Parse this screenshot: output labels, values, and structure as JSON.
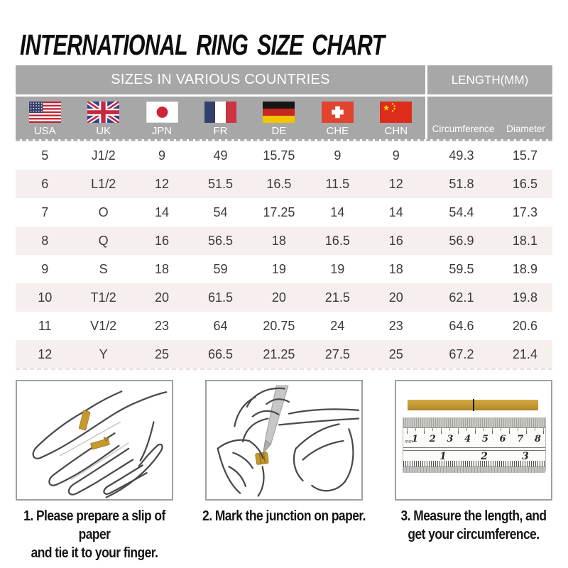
{
  "title": "INTERNATIONAL RING SIZE CHART",
  "chart_data": {
    "type": "table",
    "group_headers": {
      "sizes": "SIZES IN VARIOUS COUNTRIES",
      "length": "LENGTH(MM)"
    },
    "columns": [
      {
        "code": "USA",
        "flag_icon": "usa-flag-icon"
      },
      {
        "code": "UK",
        "flag_icon": "uk-flag-icon"
      },
      {
        "code": "JPN",
        "flag_icon": "japan-flag-icon"
      },
      {
        "code": "FR",
        "flag_icon": "france-flag-icon"
      },
      {
        "code": "DE",
        "flag_icon": "germany-flag-icon"
      },
      {
        "code": "CHE",
        "flag_icon": "switzerland-flag-icon"
      },
      {
        "code": "CHN",
        "flag_icon": "china-flag-icon"
      }
    ],
    "length_columns": [
      "Circumference",
      "Diameter"
    ],
    "rows": [
      [
        "5",
        "J1/2",
        "9",
        "49",
        "15.75",
        "9",
        "9",
        "49.3",
        "15.7"
      ],
      [
        "6",
        "L1/2",
        "12",
        "51.5",
        "16.5",
        "11.5",
        "12",
        "51.8",
        "16.5"
      ],
      [
        "7",
        "O",
        "14",
        "54",
        "17.25",
        "14",
        "14",
        "54.4",
        "17.3"
      ],
      [
        "8",
        "Q",
        "16",
        "56.5",
        "18",
        "16.5",
        "16",
        "56.9",
        "18.1"
      ],
      [
        "9",
        "S",
        "18",
        "59",
        "19",
        "19",
        "18",
        "59.5",
        "18.9"
      ],
      [
        "10",
        "T1/2",
        "20",
        "61.5",
        "20",
        "21.5",
        "20",
        "62.1",
        "19.8"
      ],
      [
        "11",
        "V1/2",
        "23",
        "64",
        "20.75",
        "24",
        "23",
        "64.6",
        "20.6"
      ],
      [
        "12",
        "Y",
        "25",
        "66.5",
        "21.25",
        "27.5",
        "25",
        "67.2",
        "21.4"
      ]
    ]
  },
  "steps": [
    {
      "illustration": "hand-with-paper-slip-illustration",
      "caption_lines": [
        "1. Please prepare a slip of paper",
        "and tie it to your finger."
      ]
    },
    {
      "illustration": "mark-junction-with-pen-illustration",
      "caption_lines": [
        "2. Mark the junction on paper."
      ]
    },
    {
      "illustration": "ruler-measuring-strip-illustration",
      "caption_lines": [
        "3. Measure the length, and",
        "get your circumference."
      ]
    }
  ],
  "ruler": {
    "unit_label": "mm",
    "cm_numbers": [
      "1",
      "2",
      "3",
      "4",
      "5",
      "6",
      "7",
      "8"
    ],
    "inch_numbers": [
      "1",
      "2",
      "3"
    ]
  },
  "colors": {
    "header_gray": "#a7a7a7",
    "row_alt": "#f6efed",
    "paper_gold": "#c6992f",
    "text_dark": "#3a3a3a",
    "white": "#ffffff"
  }
}
